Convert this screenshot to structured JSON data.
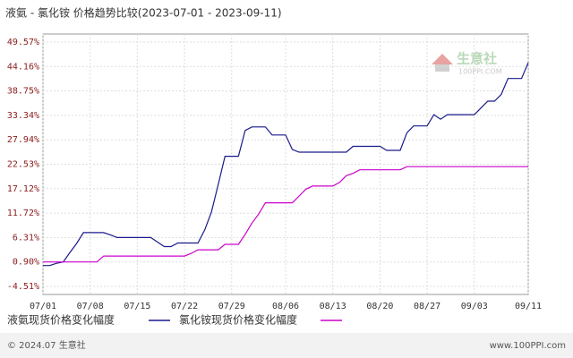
{
  "chart_data": {
    "type": "line",
    "title": "液氨 - 氯化铵 价格趋势比较(2023-07-01 - 2023-09-11)",
    "categories": [
      "07/01",
      null,
      null,
      null,
      null,
      null,
      null,
      "07/08",
      null,
      null,
      null,
      null,
      null,
      null,
      "07/15",
      null,
      null,
      null,
      null,
      null,
      null,
      "07/22",
      null,
      null,
      null,
      null,
      null,
      null,
      "07/29",
      null,
      null,
      null,
      null,
      null,
      null,
      null,
      "08/06",
      null,
      null,
      null,
      null,
      null,
      null,
      "08/13",
      null,
      null,
      null,
      null,
      null,
      null,
      "08/20",
      null,
      null,
      null,
      null,
      null,
      null,
      "08/27",
      null,
      null,
      null,
      null,
      null,
      null,
      "09/03",
      null,
      null,
      null,
      null,
      null,
      null,
      null,
      "09/11"
    ],
    "series": [
      {
        "name": "液氨现货价格变化幅度",
        "color": "#1a1a8c",
        "values": [
          0.1,
          0.1,
          0.6,
          0.9,
          3,
          5,
          7.4,
          7.4,
          7.4,
          7.4,
          6.9,
          6.3,
          6.3,
          6.3,
          6.3,
          6.3,
          6.3,
          5.3,
          4.3,
          4.3,
          5.1,
          5.1,
          5.1,
          5.1,
          8,
          12,
          18,
          24.3,
          24.3,
          24.3,
          30,
          30.8,
          30.8,
          30.8,
          29,
          29,
          29,
          25.8,
          25.2,
          25.2,
          25.2,
          25.2,
          25.2,
          25.2,
          25.2,
          25.2,
          26.5,
          26.5,
          26.5,
          26.5,
          26.5,
          25.6,
          25.6,
          25.6,
          29.5,
          31,
          31,
          31,
          33.5,
          32.5,
          33.5,
          33.5,
          33.5,
          33.5,
          33.5,
          35,
          36.5,
          36.5,
          38,
          41.5,
          41.5,
          41.5,
          45
        ]
      },
      {
        "name": "氯化铵现货价格变化幅度",
        "color": "#cc00cc",
        "values": [
          0.9,
          0.9,
          0.9,
          0.9,
          0.9,
          0.9,
          0.9,
          0.9,
          0.9,
          2.2,
          2.2,
          2.2,
          2.2,
          2.2,
          2.2,
          2.2,
          2.2,
          2.2,
          2.2,
          2.2,
          2.2,
          2.2,
          2.8,
          3.6,
          3.6,
          3.6,
          3.6,
          4.8,
          4.8,
          4.8,
          7,
          9.5,
          11.5,
          14,
          14,
          14,
          14,
          14,
          15.5,
          17,
          17.7,
          17.7,
          17.7,
          17.7,
          18.5,
          20,
          20.5,
          21.3,
          21.3,
          21.3,
          21.3,
          21.3,
          21.3,
          21.3,
          22,
          22,
          22,
          22,
          22,
          22,
          22,
          22,
          22,
          22,
          22,
          22,
          22,
          22,
          22,
          22,
          22,
          22,
          22
        ]
      }
    ],
    "ylim": [
      -4.51,
      49.57
    ],
    "yticks": [
      {
        "value": 49.57,
        "label": "49.57%"
      },
      {
        "value": 44.16,
        "label": "44.16%"
      },
      {
        "value": 38.75,
        "label": "38.75%"
      },
      {
        "value": 33.34,
        "label": "33.34%"
      },
      {
        "value": 27.94,
        "label": "27.94%"
      },
      {
        "value": 22.53,
        "label": "22.53%"
      },
      {
        "value": 17.12,
        "label": "17.12%"
      },
      {
        "value": 11.72,
        "label": "11.72%"
      },
      {
        "value": 6.31,
        "label": "6.31%"
      },
      {
        "value": 0.9,
        "label": "0.90%"
      },
      {
        "value": -4.51,
        "label": "-4.51%"
      }
    ],
    "grid": true
  },
  "watermark": {
    "name": "生意社",
    "site": "100PPI.COM"
  },
  "footer": {
    "left": "© 2024.07 生意社",
    "right": "www.100PPI.com"
  }
}
